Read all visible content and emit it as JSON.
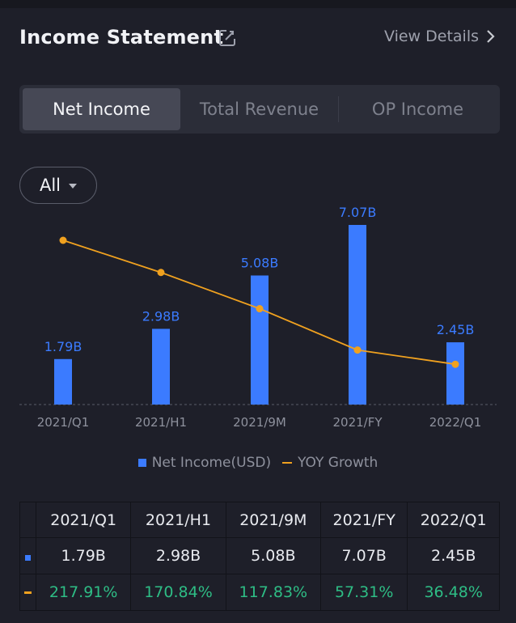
{
  "header": {
    "title": "Income Statement",
    "view_details": "View Details"
  },
  "tabs": [
    {
      "label": "Net Income",
      "active": true
    },
    {
      "label": "Total Revenue",
      "active": false
    },
    {
      "label": "OP Income",
      "active": false
    }
  ],
  "filter": {
    "label": "All"
  },
  "colors": {
    "bar": "#3b7bff",
    "line": "#f0a11f",
    "positive": "#2ebd85"
  },
  "chart_data": {
    "type": "bar",
    "categories": [
      "2021/Q1",
      "2021/H1",
      "2021/9M",
      "2021/FY",
      "2022/Q1"
    ],
    "series": [
      {
        "name": "Net Income(USD)",
        "type": "bar",
        "values": [
          1.79,
          2.98,
          5.08,
          7.07,
          2.45
        ],
        "labels": [
          "1.79B",
          "2.98B",
          "5.08B",
          "7.07B",
          "2.45B"
        ]
      },
      {
        "name": "YOY Growth",
        "type": "line",
        "values": [
          217.91,
          170.84,
          117.83,
          57.31,
          36.48
        ]
      }
    ],
    "ylim": [
      0,
      7.07
    ],
    "y2lim": [
      0,
      217.91
    ],
    "legend_position": "bottom"
  },
  "legend": {
    "bar_label": "Net Income(USD)",
    "line_label": "YOY Growth"
  },
  "table": {
    "headers": [
      "2021/Q1",
      "2021/H1",
      "2021/9M",
      "2021/FY",
      "2022/Q1"
    ],
    "net_income": [
      "1.79B",
      "2.98B",
      "5.08B",
      "7.07B",
      "2.45B"
    ],
    "yoy_growth": [
      "217.91%",
      "170.84%",
      "117.83%",
      "57.31%",
      "36.48%"
    ]
  }
}
